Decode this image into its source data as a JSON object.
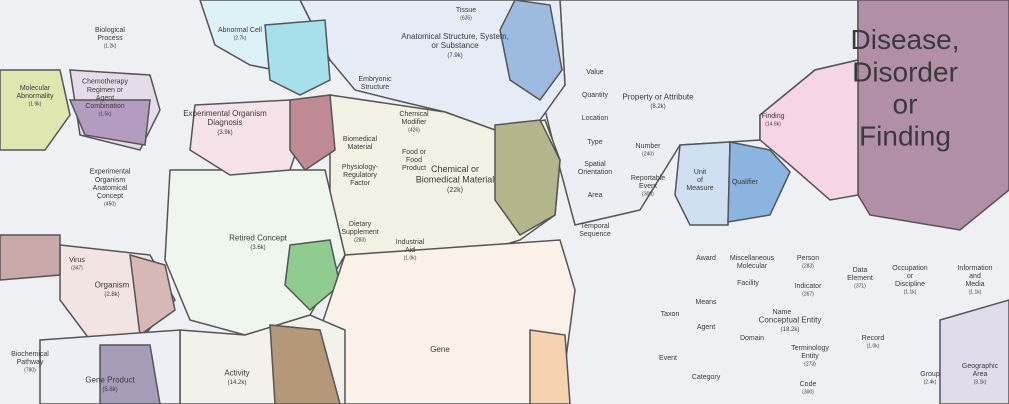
{
  "cells": [
    {
      "lines": [
        "Disease,",
        "Disorder",
        "or",
        "Finding"
      ]
    },
    {
      "lines": [
        "Finding"
      ],
      "count": "(14.6k)"
    },
    {
      "lines": [
        "Anatomical Structure, System,",
        "or Substance"
      ],
      "count": "(7.9k)"
    },
    {
      "lines": [
        "Property or Attribute"
      ],
      "count": "(8.2k)"
    },
    {
      "lines": [
        "Unit",
        "of",
        "Measure"
      ]
    },
    {
      "lines": [
        "Qualifier"
      ]
    },
    {
      "lines": [
        "Conceptual Entity"
      ],
      "count": "(18.2k)"
    },
    {
      "lines": [
        "Chemical or",
        "Biomedical Material"
      ],
      "count": "(22k)"
    },
    {
      "lines": [
        "Retired Concept"
      ],
      "count": "(3.6k)"
    },
    {
      "lines": [
        "Gene"
      ]
    },
    {
      "lines": [
        "Activity"
      ],
      "count": "(14.2k)"
    },
    {
      "lines": [
        "Experimental Organism",
        "Diagnosis"
      ],
      "count": "(3.9k)"
    },
    {
      "lines": [
        "Organism"
      ],
      "count": "(2.8k)"
    },
    {
      "lines": [
        "Gene Product"
      ],
      "count": "(5.8k)"
    },
    {
      "lines": [
        "Abnormal Cell"
      ],
      "count": "(2.7k)"
    },
    {
      "lines": [
        "Molecular",
        "Abnormality"
      ],
      "count": "(1.9k)"
    },
    {
      "lines": [
        "Chemotherapy",
        "Regimen or",
        "Agent",
        "Combination"
      ],
      "count": "(1.5k)"
    },
    {
      "lines": [
        "Experimental",
        "Organism",
        "Anatomical",
        "Concept"
      ],
      "count": "(450)"
    },
    {
      "lines": [
        "Biological",
        "Process"
      ],
      "count": "(1.2k)"
    },
    {
      "lines": [
        "Biochemical",
        "Pathway"
      ],
      "count": "(780)"
    },
    {
      "lines": [
        "Data",
        "Element"
      ],
      "count": "(371)"
    },
    {
      "lines": [
        "Occupation",
        "or",
        "Discipline"
      ],
      "count": "(1.1k)"
    },
    {
      "lines": [
        "Information",
        "and",
        "Media"
      ],
      "count": "(1.1k)"
    },
    {
      "lines": [
        "Record"
      ],
      "count": "(1.0k)"
    },
    {
      "lines": [
        "Group"
      ],
      "count": "(2.4k)"
    },
    {
      "lines": [
        "Geographic",
        "Area"
      ],
      "count": "(3.1k)"
    },
    {
      "lines": [
        "Person"
      ],
      "count": "(283)"
    },
    {
      "lines": [
        "Indicator"
      ],
      "count": "(267)"
    },
    {
      "lines": [
        "Name"
      ]
    },
    {
      "lines": [
        "Agent"
      ]
    },
    {
      "lines": [
        "Domain"
      ]
    },
    {
      "lines": [
        "Terminology",
        "Entity"
      ],
      "count": "(273)"
    },
    {
      "lines": [
        "Code"
      ],
      "count": "(300)"
    },
    {
      "lines": [
        "Award"
      ]
    },
    {
      "lines": [
        "Facility"
      ]
    },
    {
      "lines": [
        "Means"
      ]
    },
    {
      "lines": [
        "Category"
      ]
    },
    {
      "lines": [
        "Event"
      ]
    },
    {
      "lines": [
        "Taxon"
      ]
    },
    {
      "lines": [
        "Virus"
      ],
      "count": "(347)"
    },
    {
      "lines": [
        "Spatial",
        "Orientation"
      ]
    },
    {
      "lines": [
        "Area"
      ]
    },
    {
      "lines": [
        "Location"
      ]
    },
    {
      "lines": [
        "Quantity"
      ]
    },
    {
      "lines": [
        "Value"
      ]
    },
    {
      "lines": [
        "Type"
      ]
    },
    {
      "lines": [
        "Number"
      ],
      "count": "(240)"
    },
    {
      "lines": [
        "Reportable",
        "Event"
      ],
      "count": "(300)"
    },
    {
      "lines": [
        "Temporal",
        "Sequence"
      ]
    },
    {
      "lines": [
        "Industrial",
        "Aid"
      ],
      "count": "(1.0k)"
    },
    {
      "lines": [
        "Dietary",
        "Supplement"
      ],
      "count": "(283)"
    },
    {
      "lines": [
        "Physiology-",
        "Regulatory",
        "Factor"
      ]
    },
    {
      "lines": [
        "Biomedical",
        "Material"
      ]
    },
    {
      "lines": [
        "Chemical",
        "Modifier"
      ],
      "count": "(426)"
    },
    {
      "lines": [
        "Food or",
        "Food",
        "Product"
      ]
    },
    {
      "lines": [
        "Tissue"
      ],
      "count": "(635)"
    },
    {
      "lines": [
        "Embryonic",
        "Structure"
      ]
    },
    {
      "lines": [
        "Miscellaneous",
        "Molecular"
      ]
    }
  ]
}
